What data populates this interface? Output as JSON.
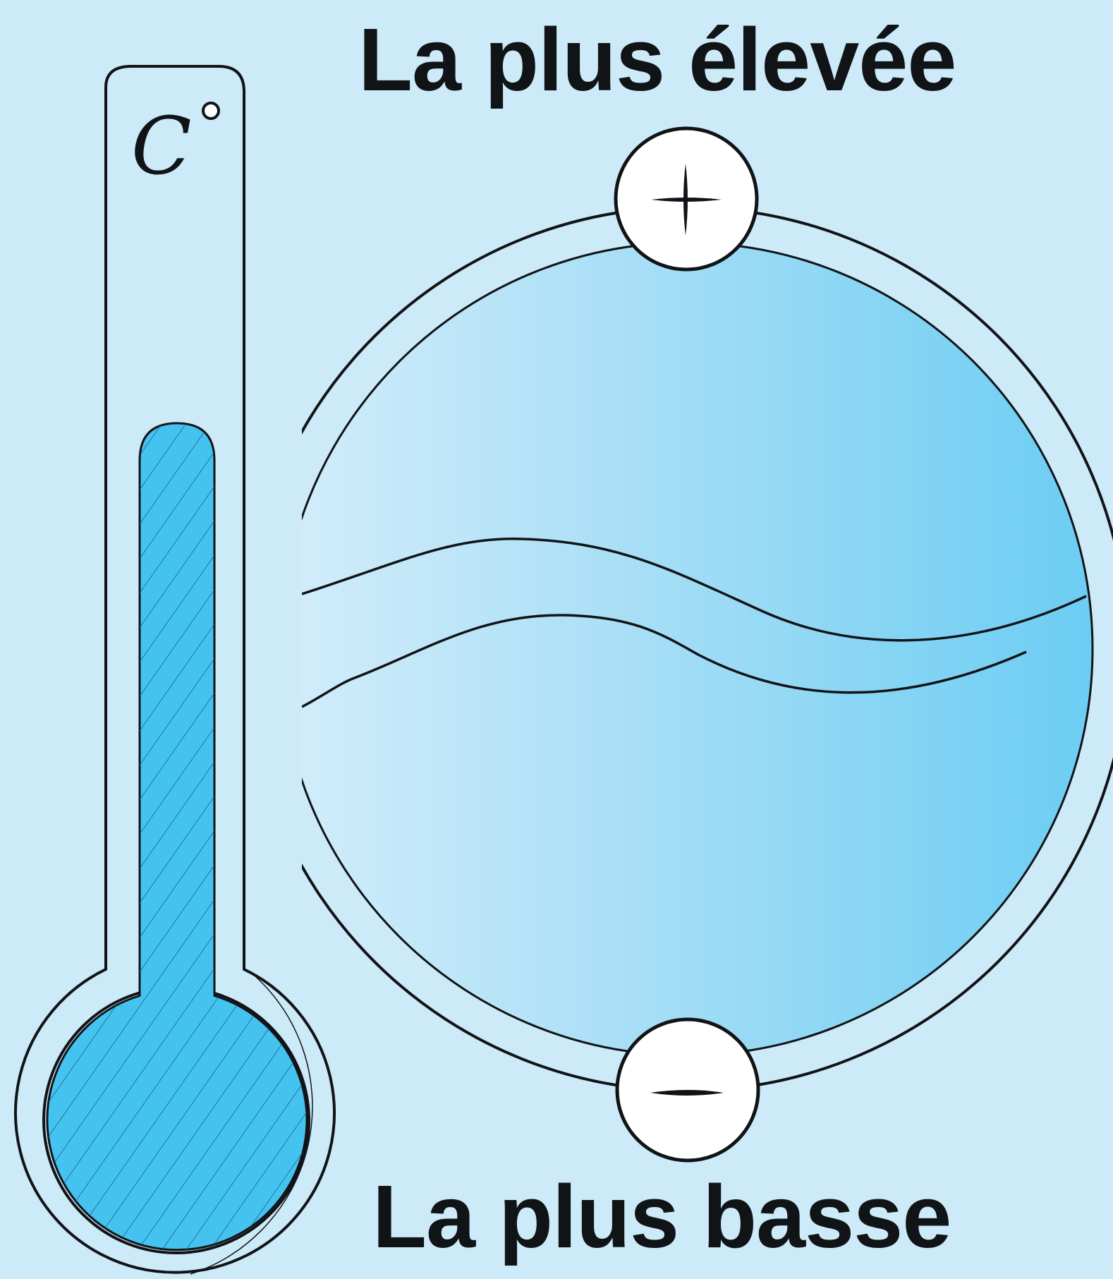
{
  "labels": {
    "top": "La plus élevée",
    "bottom": "La plus basse",
    "unit": "C"
  },
  "poles": {
    "plus": "+",
    "minus": "−"
  },
  "thermometer": {
    "level": 0.62
  },
  "colors": {
    "background": "#cdeaf9",
    "liquid": "#45c3f0",
    "sphere_light": "#d3edfa",
    "sphere_dark": "#6ccdf3",
    "stroke": "#111417",
    "pole_fill": "#ffffff"
  }
}
